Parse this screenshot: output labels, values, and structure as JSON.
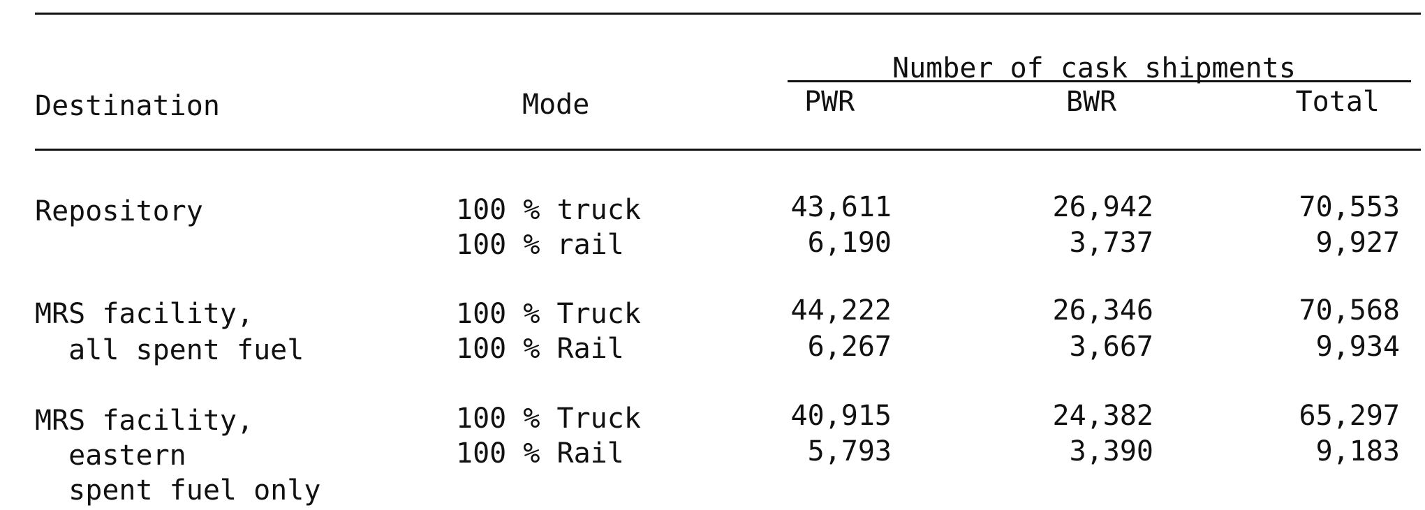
{
  "group_header": "Number of cask shipments",
  "headers": {
    "destination": "Destination",
    "mode": "Mode",
    "pwr": "PWR",
    "bwr": "BWR",
    "total": "Total"
  },
  "rows": [
    {
      "destination_lines": [
        "Repository"
      ],
      "entries": [
        {
          "mode": "100 % truck",
          "pwr": "43,611",
          "bwr": "26,942",
          "total": "70,553"
        },
        {
          "mode": "100 % rail",
          "pwr": "6,190",
          "bwr": "3,737",
          "total": "9,927"
        }
      ]
    },
    {
      "destination_lines": [
        "MRS facility,",
        "  all spent fuel"
      ],
      "entries": [
        {
          "mode": "100 % Truck",
          "pwr": "44,222",
          "bwr": "26,346",
          "total": "70,568"
        },
        {
          "mode": "100 % Rail",
          "pwr": "6,267",
          "bwr": "3,667",
          "total": "9,934"
        }
      ]
    },
    {
      "destination_lines": [
        "MRS facility,",
        "  eastern",
        "  spent fuel only"
      ],
      "entries": [
        {
          "mode": "100 % Truck",
          "pwr": "40,915",
          "bwr": "24,382",
          "total": "65,297"
        },
        {
          "mode": "100 % Rail",
          "pwr": "5,793",
          "bwr": "3,390",
          "total": "9,183"
        }
      ]
    }
  ]
}
